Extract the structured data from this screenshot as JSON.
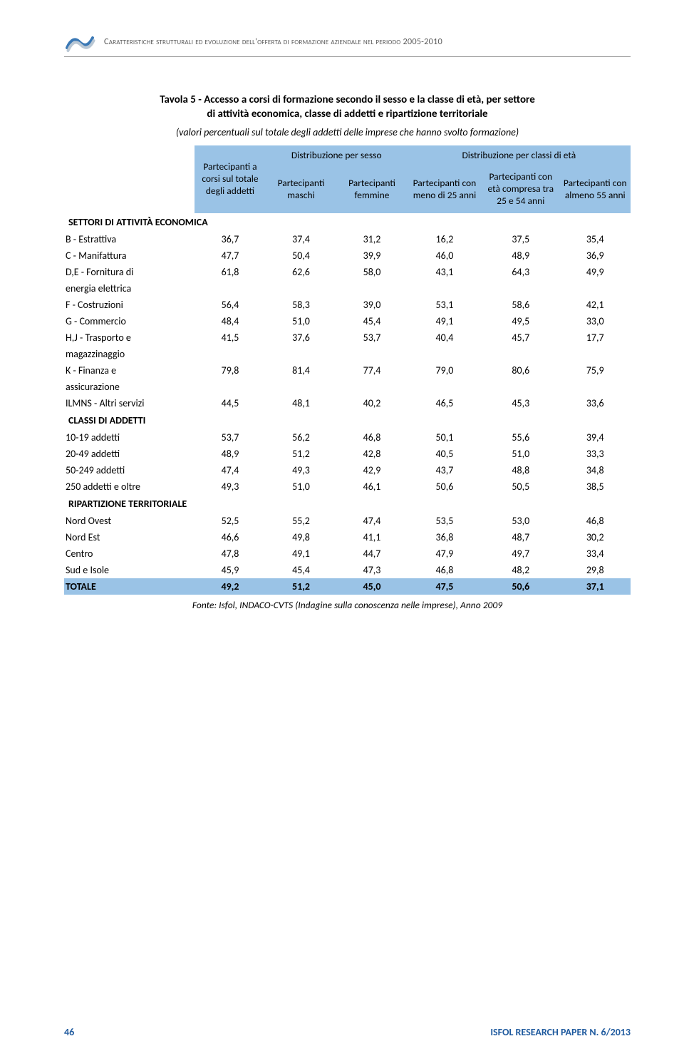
{
  "header": {
    "running_title": "Caratteristiche strutturali ed evoluzione dell'offerta di formazione aziendale nel periodo 2005-2010"
  },
  "table": {
    "title_lines": [
      "Tavola 5 - Accesso a corsi di formazione secondo il sesso e la classe di età, per settore",
      "di attività economica, classe di addetti e ripartizione territoriale"
    ],
    "subtitle": "(valori percentuali sul totale degli addetti delle imprese che hanno svolto formazione)",
    "headers": {
      "col1": "Partecipanti a corsi sul totale degli addetti",
      "group_sex": "Distribuzione per sesso",
      "group_age": "Distribuzione per classi di età",
      "sex_m": "Partecipanti maschi",
      "sex_f": "Partecipanti femmine",
      "age_lt25": "Partecipanti con meno di 25 anni",
      "age_25_54": "Partecipanti con età compresa tra 25 e 54 anni",
      "age_ge55": "Partecipanti con almeno 55 anni"
    },
    "sections": [
      {
        "label": "SETTORI DI ATTIVITÀ ECONOMICA",
        "rows": [
          {
            "label": "B - Estrattiva",
            "v": [
              "36,7",
              "37,4",
              "31,2",
              "16,2",
              "37,5",
              "35,4"
            ]
          },
          {
            "label": "C - Manifattura",
            "v": [
              "47,7",
              "50,4",
              "39,9",
              "46,0",
              "48,9",
              "36,9"
            ]
          },
          {
            "label": "D,E - Fornitura di",
            "sub": "energia elettrica",
            "v": [
              "61,8",
              "62,6",
              "58,0",
              "43,1",
              "64,3",
              "49,9"
            ]
          },
          {
            "label": "F - Costruzioni",
            "v": [
              "56,4",
              "58,3",
              "39,0",
              "53,1",
              "58,6",
              "42,1"
            ]
          },
          {
            "label": "G - Commercio",
            "v": [
              "48,4",
              "51,0",
              "45,4",
              "49,1",
              "49,5",
              "33,0"
            ]
          },
          {
            "label": "H,J - Trasporto e",
            "sub": "magazzinaggio",
            "v": [
              "41,5",
              "37,6",
              "53,7",
              "40,4",
              "45,7",
              "17,7"
            ]
          },
          {
            "label": "K - Finanza e",
            "sub": "assicurazione",
            "v": [
              "79,8",
              "81,4",
              "77,4",
              "79,0",
              "80,6",
              "75,9"
            ]
          },
          {
            "label": "ILMNS - Altri servizi",
            "v": [
              "44,5",
              "48,1",
              "40,2",
              "46,5",
              "45,3",
              "33,6"
            ]
          }
        ]
      },
      {
        "label": "CLASSI DI ADDETTI",
        "rows": [
          {
            "label": "10-19 addetti",
            "v": [
              "53,7",
              "56,2",
              "46,8",
              "50,1",
              "55,6",
              "39,4"
            ]
          },
          {
            "label": "20-49 addetti",
            "v": [
              "48,9",
              "51,2",
              "42,8",
              "40,5",
              "51,0",
              "33,3"
            ]
          },
          {
            "label": "50-249 addetti",
            "v": [
              "47,4",
              "49,3",
              "42,9",
              "43,7",
              "48,8",
              "34,8"
            ]
          },
          {
            "label": "250 addetti e oltre",
            "v": [
              "49,3",
              "51,0",
              "46,1",
              "50,6",
              "50,5",
              "38,5"
            ]
          }
        ]
      },
      {
        "label": "RIPARTIZIONE TERRITORIALE",
        "rows": [
          {
            "label": "Nord Ovest",
            "v": [
              "52,5",
              "55,2",
              "47,4",
              "53,5",
              "53,0",
              "46,8"
            ]
          },
          {
            "label": "Nord Est",
            "v": [
              "46,6",
              "49,8",
              "41,1",
              "36,8",
              "48,7",
              "30,2"
            ]
          },
          {
            "label": "Centro",
            "v": [
              "47,8",
              "49,1",
              "44,7",
              "47,9",
              "49,7",
              "33,4"
            ]
          },
          {
            "label": "Sud e Isole",
            "v": [
              "45,9",
              "45,4",
              "47,3",
              "46,8",
              "48,2",
              "29,8"
            ]
          }
        ]
      }
    ],
    "total": {
      "label": "TOTALE",
      "v": [
        "49,2",
        "51,2",
        "45,0",
        "47,5",
        "50,6",
        "37,1"
      ]
    },
    "source": "Fonte: Isfol, INDACO-CVTS (Indagine sulla conoscenza nelle imprese), Anno 2009"
  },
  "footer": {
    "page": "46",
    "pub": "ISFOL RESEARCH PAPER N. 6/2013"
  },
  "style": {
    "header_bg": "#9ac3e6",
    "text_color": "#000000",
    "footer_color": "#1f5a9e"
  }
}
